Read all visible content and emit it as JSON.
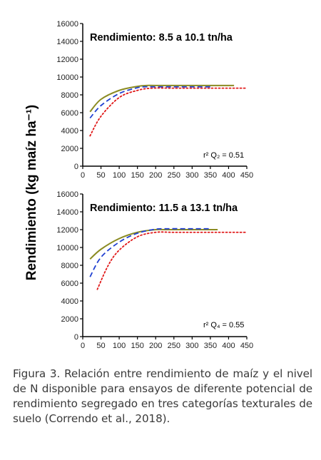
{
  "figure": {
    "ylabel": "Rendimiento (kg maíz ha⁻¹)",
    "caption": "Figura 3. Relación entre rendimiento de maíz y el nivel de N disponible para ensayos de diferente potencial de rendimiento segregado en tres categorías texturales de suelo (Correndo et al., 2018)."
  },
  "chart_data": [
    {
      "type": "line",
      "title": "Rendimiento: 8.5 a 10.1 tn/ha",
      "annotation": "r² Q₂ = 0.51",
      "xlabel": "",
      "ylabel": "Rendimiento (kg maíz ha⁻¹)",
      "xlim": [
        0,
        450
      ],
      "ylim": [
        0,
        16000
      ],
      "xticks": [
        0,
        50,
        100,
        150,
        200,
        250,
        300,
        350,
        400,
        450
      ],
      "yticks": [
        0,
        2000,
        4000,
        6000,
        8000,
        10000,
        12000,
        14000,
        16000
      ],
      "grid": false,
      "series": [
        {
          "style": "solid",
          "color": "#8b8b22",
          "x": [
            20,
            50,
            100,
            150,
            175,
            200,
            300,
            415
          ],
          "y": [
            6100,
            7500,
            8500,
            8950,
            9050,
            9050,
            9050,
            9050
          ]
        },
        {
          "style": "dashed",
          "color": "#1f3fd1",
          "x": [
            20,
            50,
            100,
            150,
            170,
            200,
            300,
            350
          ],
          "y": [
            5400,
            6800,
            8150,
            8800,
            8900,
            8900,
            8900,
            8900
          ]
        },
        {
          "style": "dotted",
          "color": "#e01818",
          "x": [
            20,
            50,
            100,
            150,
            190,
            250,
            350,
            450
          ],
          "y": [
            3400,
            5600,
            7700,
            8500,
            8750,
            8750,
            8750,
            8750
          ]
        }
      ]
    },
    {
      "type": "line",
      "title": "Rendimiento: 11.5 a 13.1 tn/ha",
      "annotation": "r² Q₄ = 0.55",
      "xlabel": "",
      "ylabel": "Rendimiento (kg maíz ha⁻¹)",
      "xlim": [
        0,
        450
      ],
      "ylim": [
        0,
        16000
      ],
      "xticks": [
        0,
        50,
        100,
        150,
        200,
        250,
        300,
        350,
        400,
        450
      ],
      "yticks": [
        0,
        2000,
        4000,
        6000,
        8000,
        10000,
        12000,
        14000,
        16000
      ],
      "grid": false,
      "series": [
        {
          "style": "solid",
          "color": "#8b8b22",
          "x": [
            20,
            50,
            100,
            150,
            200,
            230,
            300,
            370
          ],
          "y": [
            8700,
            9800,
            11000,
            11700,
            12000,
            12000,
            12000,
            12000
          ]
        },
        {
          "style": "dashed",
          "color": "#1f3fd1",
          "x": [
            20,
            50,
            100,
            150,
            200,
            230,
            300,
            350
          ],
          "y": [
            6700,
            8900,
            10600,
            11600,
            12050,
            12100,
            12100,
            12100
          ]
        },
        {
          "style": "dotted",
          "color": "#e01818",
          "x": [
            40,
            70,
            100,
            150,
            200,
            250,
            350,
            450
          ],
          "y": [
            5300,
            8000,
            9700,
            11200,
            11700,
            11700,
            11700,
            11700
          ]
        }
      ]
    }
  ]
}
